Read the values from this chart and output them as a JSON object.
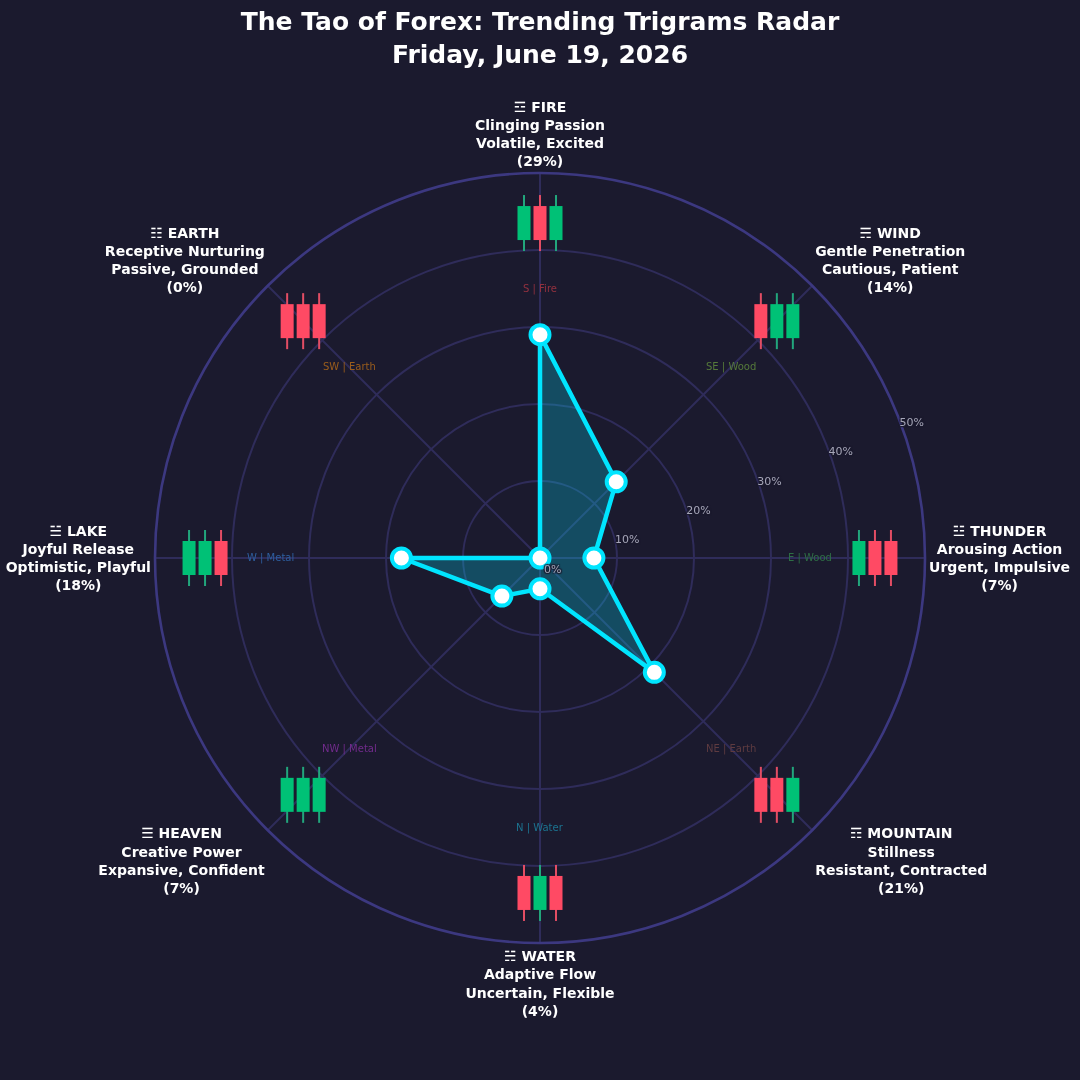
{
  "chart_data": {
    "type": "radar",
    "title": "The Tao of Forex: Trending Trigrams Radar",
    "subtitle": "Friday, June 19, 2026",
    "categories": [
      "☲ FIRE\nClinging Passion\nVolatile, Excited\n(29%)",
      "☴ WIND\nGentle Penetration\nCautious, Patient\n(14%)",
      "☳ THUNDER\nArousing Action\nUrgent, Impulsive\n(7%)",
      "☶ MOUNTAIN\nStillness\nResistant, Contracted\n(21%)",
      "☵ WATER\nAdaptive Flow\nUncertain, Flexible\n(4%)",
      "☰ HEAVEN\nCreative Power\nExpansive, Confident\n(7%)",
      "☱ LAKE\nJoyful Release\nOptimistic, Playful\n(18%)",
      "☷ EARTH\nReceptive Nurturing\nPassive, Grounded\n(0%)"
    ],
    "values": [
      29,
      14,
      7,
      21,
      4,
      7,
      18,
      0
    ],
    "color": "#00e5ff",
    "ylim": [
      0,
      50
    ],
    "yticks": [
      {
        "value": 0,
        "label": "0%"
      },
      {
        "value": 10,
        "label": "10%"
      },
      {
        "value": 20,
        "label": "20%"
      },
      {
        "value": 30,
        "label": "30%"
      },
      {
        "value": 40,
        "label": "40%"
      },
      {
        "value": 50,
        "label": "50%"
      }
    ],
    "grid": true,
    "marker": "circle",
    "line_style": "solid",
    "annotations": [
      "S | Fire",
      "SE | Wood",
      "E | Wood",
      "NE | Earth",
      "N | Water",
      "NW | Metal",
      "W | Metal",
      "SW | Earth"
    ]
  }
}
